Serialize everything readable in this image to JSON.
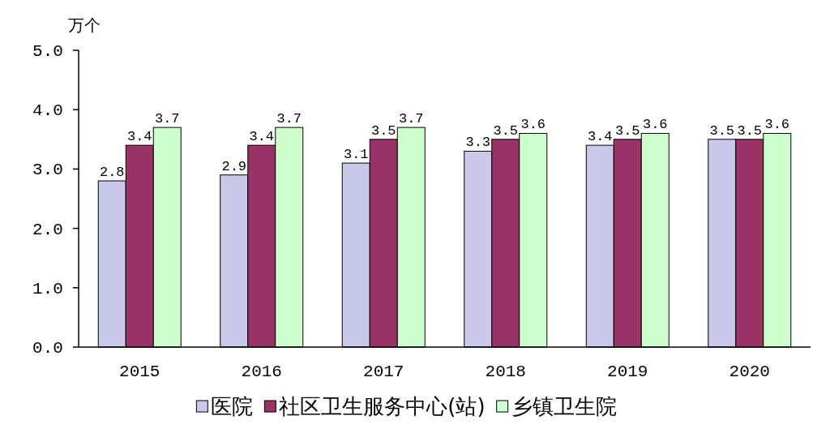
{
  "chart_data": {
    "type": "bar",
    "ylabel": "万个",
    "categories": [
      "2015",
      "2016",
      "2017",
      "2018",
      "2019",
      "2020"
    ],
    "series": [
      {
        "name": "医院",
        "color": "#c8c8e8",
        "values": [
          2.8,
          2.9,
          3.1,
          3.3,
          3.4,
          3.5
        ]
      },
      {
        "name": "社区卫生服务中心(站)",
        "color": "#993366",
        "values": [
          3.4,
          3.4,
          3.5,
          3.5,
          3.5,
          3.5
        ]
      },
      {
        "name": "乡镇卫生院",
        "color": "#ccffcc",
        "values": [
          3.7,
          3.7,
          3.7,
          3.6,
          3.6,
          3.6
        ]
      }
    ],
    "ylim": [
      0,
      5
    ],
    "yticks": [
      {
        "value": 0,
        "label": "0.0"
      },
      {
        "value": 1,
        "label": "1.0"
      },
      {
        "value": 2,
        "label": "2.0"
      },
      {
        "value": 3,
        "label": "3.0"
      },
      {
        "value": 4,
        "label": "4.0"
      },
      {
        "value": 5,
        "label": "5.0"
      }
    ],
    "data_labels": true,
    "grid": false,
    "legend": "bottom"
  }
}
